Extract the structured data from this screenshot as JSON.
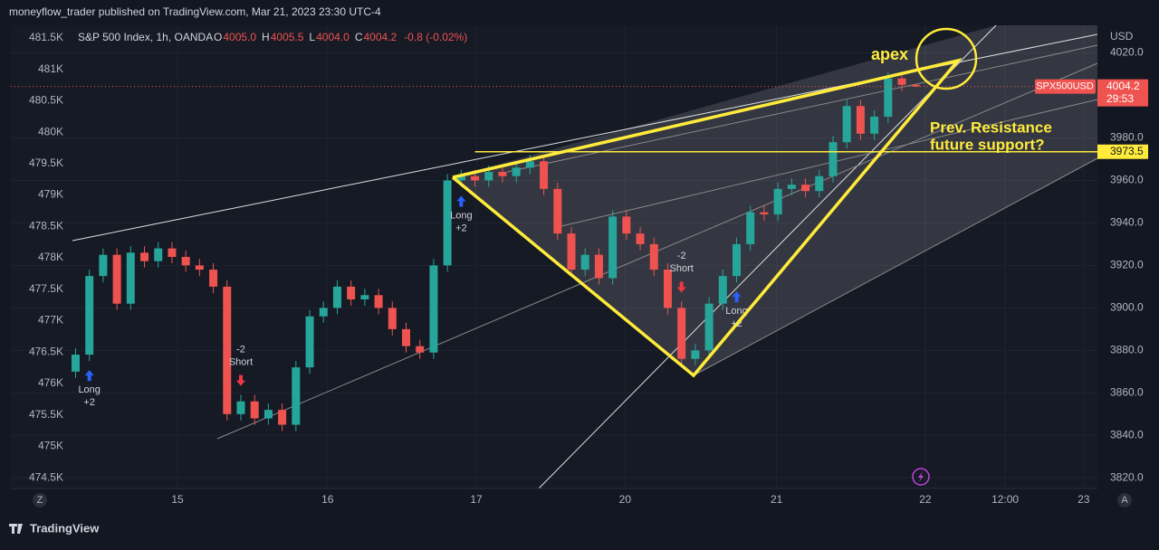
{
  "top_bar": "moneyflow_trader published on TradingView.com, Mar 21, 2023 23:30 UTC-4",
  "footer": "TradingView",
  "ui": {
    "left_button": "Z",
    "right_button": "A"
  },
  "chart_data": {
    "type": "candlestick",
    "title": "S&P 500 Index, 1h, OANDA",
    "ohlc_header": [
      {
        "key": "O",
        "value": "4005.0"
      },
      {
        "key": "H",
        "value": "4005.5"
      },
      {
        "key": "L",
        "value": "4004.0"
      },
      {
        "key": "C",
        "value": "4004.2"
      }
    ],
    "change": "-0.8 (-0.02%)",
    "symbol": "SPX500USD",
    "currency": "USD",
    "countdown": "29:53",
    "up_color": "#26a69a",
    "down_color": "#ef5350",
    "open": [
      3870,
      3878,
      3915,
      3925,
      3902,
      3926,
      3922,
      3928,
      3924,
      3920,
      3918,
      3910,
      3850,
      3856,
      3848,
      3852,
      3845,
      3872,
      3896,
      3900,
      3910,
      3904,
      3906,
      3900,
      3890,
      3882,
      3879,
      3920,
      3960,
      3962,
      3960,
      3964,
      3962,
      3966,
      3969,
      3956,
      3935,
      3918,
      3925,
      3914,
      3943,
      3935,
      3930,
      3918,
      3900,
      3876,
      3880,
      3902,
      3915,
      3930,
      3945,
      3944,
      3956,
      3958,
      3955,
      3962,
      3978,
      3995,
      3982,
      3990,
      4008,
      4005.0
    ],
    "high": [
      3881,
      3918,
      3928,
      3928,
      3929,
      3929,
      3931,
      3931,
      3927,
      3923,
      3921,
      3913,
      3859,
      3859,
      3855,
      3855,
      3875,
      3899,
      3903,
      3913,
      3913,
      3909,
      3909,
      3903,
      3893,
      3885,
      3923,
      3963,
      3965,
      3965,
      3967,
      3967,
      3969,
      3972,
      3972,
      3959,
      3938,
      3928,
      3928,
      3946,
      3946,
      3938,
      3933,
      3921,
      3903,
      3883,
      3905,
      3918,
      3933,
      3948,
      3948,
      3959,
      3961,
      3961,
      3965,
      3981,
      3998,
      3998,
      3993,
      4011,
      4011,
      4005.5
    ],
    "low": [
      3867,
      3875,
      3912,
      3899,
      3899,
      3919,
      3919,
      3921,
      3917,
      3915,
      3907,
      3847,
      3847,
      3845,
      3845,
      3842,
      3842,
      3869,
      3893,
      3897,
      3901,
      3901,
      3897,
      3887,
      3879,
      3876,
      3876,
      3917,
      3957,
      3957,
      3957,
      3959,
      3959,
      3963,
      3953,
      3932,
      3915,
      3915,
      3911,
      3911,
      3932,
      3927,
      3915,
      3897,
      3873,
      3873,
      3877,
      3899,
      3912,
      3927,
      3941,
      3941,
      3953,
      3952,
      3952,
      3959,
      3975,
      3979,
      3979,
      3987,
      4002,
      4004.0
    ],
    "close": [
      3878,
      3915,
      3925,
      3902,
      3926,
      3922,
      3928,
      3924,
      3920,
      3918,
      3910,
      3850,
      3856,
      3848,
      3852,
      3845,
      3872,
      3896,
      3900,
      3910,
      3904,
      3906,
      3900,
      3890,
      3882,
      3879,
      3920,
      3960,
      3962,
      3960,
      3964,
      3962,
      3966,
      3969,
      3956,
      3935,
      3918,
      3925,
      3914,
      3943,
      3935,
      3930,
      3918,
      3900,
      3876,
      3880,
      3902,
      3915,
      3930,
      3945,
      3944,
      3956,
      3958,
      3955,
      3962,
      3978,
      3995,
      3982,
      3990,
      4008,
      4005.0,
      4004.2
    ],
    "xlim": [
      -4.7,
      74.2
    ],
    "xticks": [
      {
        "value": 7.4,
        "label": "15"
      },
      {
        "value": 18.3,
        "label": "16"
      },
      {
        "value": 29.1,
        "label": "17"
      },
      {
        "value": 39.9,
        "label": "20"
      },
      {
        "value": 50.9,
        "label": "21"
      },
      {
        "value": 61.7,
        "label": "22"
      },
      {
        "value": 67.5,
        "label": "12:00"
      },
      {
        "value": 73.2,
        "label": "23"
      }
    ],
    "ylim": [
      3815,
      4033
    ],
    "yticks": [
      {
        "value": 3820,
        "label": "3820.0"
      },
      {
        "value": 3840,
        "label": "3840.0"
      },
      {
        "value": 3860,
        "label": "3860.0"
      },
      {
        "value": 3880,
        "label": "3880.0"
      },
      {
        "value": 3900,
        "label": "3900.0"
      },
      {
        "value": 3920,
        "label": "3920.0"
      },
      {
        "value": 3940,
        "label": "3940.0"
      },
      {
        "value": 3960,
        "label": "3960.0"
      },
      {
        "value": 3980,
        "label": "3980.0"
      },
      {
        "value": 4020,
        "label": "4020.0"
      }
    ],
    "y2lim": [
      474330,
      481700
    ],
    "y2ticks": [
      {
        "value": 474500,
        "label": "474.5K"
      },
      {
        "value": 475000,
        "label": "475K"
      },
      {
        "value": 475500,
        "label": "475.5K"
      },
      {
        "value": 476000,
        "label": "476K"
      },
      {
        "value": 476500,
        "label": "476.5K"
      },
      {
        "value": 477000,
        "label": "477K"
      },
      {
        "value": 477500,
        "label": "477.5K"
      },
      {
        "value": 478000,
        "label": "478K"
      },
      {
        "value": 478500,
        "label": "478.5K"
      },
      {
        "value": 479000,
        "label": "479K"
      },
      {
        "value": 479500,
        "label": "479.5K"
      },
      {
        "value": 480000,
        "label": "480K"
      },
      {
        "value": 480500,
        "label": "480.5K"
      },
      {
        "value": 481000,
        "label": "481K"
      },
      {
        "value": 481500,
        "label": "481.5K"
      }
    ],
    "grid": true,
    "hline": 3973.5,
    "annotations": {
      "apex": "apex",
      "resistance": [
        "Prev. Resistance",
        "future support?"
      ]
    },
    "signals": [
      {
        "x": 1,
        "label": "Long",
        "amount": "+2"
      },
      {
        "x": 12,
        "label": "Short",
        "amount": "-2"
      },
      {
        "x": 28,
        "label": "Long",
        "amount": "+2"
      },
      {
        "x": 44,
        "label": "Short",
        "amount": "-2"
      },
      {
        "x": 48,
        "label": "Long",
        "amount": "+2"
      }
    ]
  }
}
